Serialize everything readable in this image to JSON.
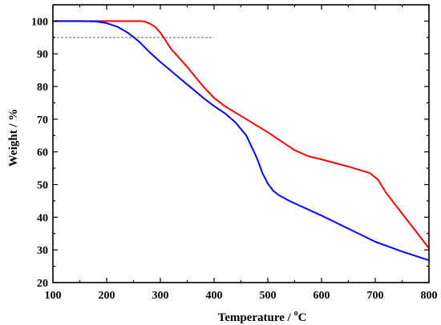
{
  "chart_data": {
    "type": "line",
    "title": "",
    "xlabel": "Temperature / °C",
    "xlabel_parts": {
      "before": "Temperature / ",
      "sup": "o",
      "after": "C"
    },
    "ylabel": "Weight / %",
    "xlim": [
      100,
      800
    ],
    "ylim": [
      20,
      105
    ],
    "xticks": [
      100,
      200,
      300,
      400,
      500,
      600,
      700,
      800
    ],
    "yticks": [
      20,
      30,
      40,
      50,
      60,
      70,
      80,
      90,
      100
    ],
    "grid": false,
    "legend": "none",
    "reference_line": {
      "y": 95,
      "x": [
        100,
        400
      ],
      "style": "dashed",
      "color": "#666666"
    },
    "series": [
      {
        "color": "#ff0000",
        "x": [
          100,
          200,
          260,
          270,
          280,
          290,
          300,
          320,
          350,
          380,
          400,
          420,
          450,
          500,
          550,
          575,
          600,
          650,
          690,
          705,
          720,
          760,
          800
        ],
        "y": [
          100,
          100,
          100,
          99.9,
          99.3,
          98.3,
          96.5,
          91.5,
          86,
          80,
          76.5,
          74,
          71,
          66,
          60.5,
          58.7,
          57.7,
          55.5,
          53.5,
          51.5,
          47.5,
          39,
          30.5
        ]
      },
      {
        "color": "#0000ff",
        "x": [
          100,
          150,
          180,
          200,
          220,
          240,
          260,
          280,
          300,
          340,
          380,
          400,
          420,
          440,
          460,
          480,
          490,
          500,
          510,
          520,
          540,
          560,
          600,
          650,
          700,
          750,
          800
        ],
        "y": [
          100,
          100,
          99.9,
          99.4,
          98.3,
          96.4,
          93.8,
          90.5,
          87.5,
          82,
          76.5,
          74,
          71.8,
          69,
          65,
          58,
          53.5,
          50.3,
          48.1,
          46.8,
          45,
          43.5,
          40.5,
          36.5,
          32.5,
          29.5,
          26.8
        ]
      }
    ]
  }
}
